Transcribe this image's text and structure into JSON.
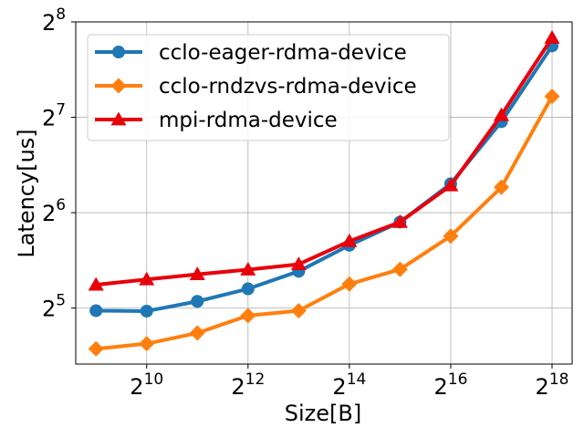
{
  "chart_data": {
    "type": "line",
    "title": "",
    "xlabel": "Size[B]",
    "ylabel": "Latency[us]",
    "x_scale": "log2",
    "y_scale": "log2",
    "x": [
      512,
      1024,
      2048,
      4096,
      8192,
      16384,
      32768,
      65536,
      131072,
      262144
    ],
    "x_ticks": [
      {
        "value": 1024,
        "base": "2",
        "exp": "10"
      },
      {
        "value": 4096,
        "base": "2",
        "exp": "12"
      },
      {
        "value": 16384,
        "base": "2",
        "exp": "14"
      },
      {
        "value": 65536,
        "base": "2",
        "exp": "16"
      },
      {
        "value": 262144,
        "base": "2",
        "exp": "18"
      }
    ],
    "y_ticks": [
      {
        "value": 32,
        "base": "2",
        "exp": "5"
      },
      {
        "value": 64,
        "base": "2",
        "exp": "6"
      },
      {
        "value": 128,
        "base": "2",
        "exp": "7"
      },
      {
        "value": 256,
        "base": "2",
        "exp": "8"
      }
    ],
    "xlim": [
      388,
      345000
    ],
    "ylim": [
      21.3,
      256
    ],
    "grid": true,
    "legend_position": "top-left",
    "series": [
      {
        "name": "cclo-eager-rdma-device",
        "color": "#1f77b4",
        "marker": "circle",
        "values": [
          31.4,
          31.3,
          33.6,
          36.8,
          41.8,
          50.5,
          59.8,
          79.0,
          124.0,
          215.0
        ]
      },
      {
        "name": "cclo-rndzvs-rdma-device",
        "color": "#ff7f0e",
        "marker": "diamond",
        "values": [
          23.8,
          24.7,
          26.7,
          30.3,
          31.4,
          38.1,
          42.4,
          54.0,
          77.0,
          149.0
        ]
      },
      {
        "name": "mpi-rdma-device",
        "color": "#e8000b",
        "marker": "triangle",
        "values": [
          37.9,
          39.4,
          40.9,
          42.3,
          44.0,
          52.0,
          59.8,
          78.0,
          130.0,
          228.0
        ]
      }
    ]
  }
}
